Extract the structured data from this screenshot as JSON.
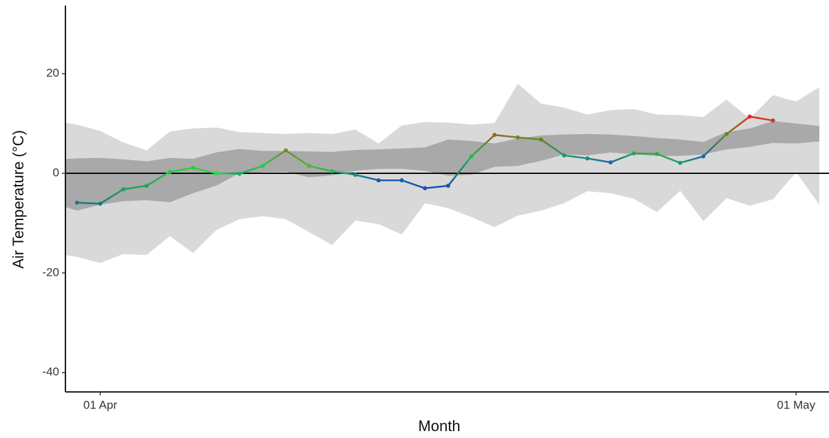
{
  "chart_data": {
    "type": "line",
    "x_label": "Month",
    "y_label": "Air Temperature (°C)",
    "xlim": [
      "03-30T12",
      "05-02T10"
    ],
    "xticks": [
      {
        "value": "04-01",
        "label": "01 Apr"
      },
      {
        "value": "05-01",
        "label": "01 May"
      }
    ],
    "ylim": [
      -43.9,
      33.7
    ],
    "yticks": [
      -40,
      -20,
      0,
      20
    ],
    "hline": 0,
    "x": [
      "03-31",
      "04-01",
      "04-02",
      "04-03",
      "04-04",
      "04-05",
      "04-06",
      "04-07",
      "04-08",
      "04-09",
      "04-10",
      "04-11",
      "04-12",
      "04-13",
      "04-14",
      "04-15",
      "04-16",
      "04-17",
      "04-18",
      "04-19",
      "04-20",
      "04-21",
      "04-22",
      "04-23",
      "04-24",
      "04-25",
      "04-26",
      "04-27",
      "04-28",
      "04-29",
      "04-30"
    ],
    "values": [
      -5.9,
      -6.1,
      -3.2,
      -2.5,
      0.3,
      1.1,
      0,
      -0.1,
      1.5,
      4.6,
      1.5,
      0.4,
      -0.3,
      -1.4,
      -1.4,
      -3.0,
      -2.5,
      3.4,
      7.7,
      7.2,
      6.8,
      3.6,
      3.0,
      2.2,
      4.0,
      3.9,
      2.1,
      3.4,
      7.9,
      11.4,
      10.6
    ],
    "colors": [
      "#1a7a8a",
      "#1a7a7a",
      "#22a060",
      "#22a060",
      "#22cc44",
      "#33cc33",
      "#22dd44",
      "#1aaa70",
      "#22cc44",
      "#7a8a22",
      "#44bb33",
      "#22bb55",
      "#1a8a8a",
      "#1a5aaa",
      "#1a60b0",
      "#1a50b0",
      "#1a50b0",
      "#22bb44",
      "#8a6a22",
      "#6a8a22",
      "#5a8a22",
      "#1a9a7a",
      "#1a8a8a",
      "#1a6aaa",
      "#22aa55",
      "#33aa44",
      "#1a9a7a",
      "#1a6aaa",
      "#6a8a22",
      "#ee2222",
      "#bb4422"
    ],
    "bands": [
      {
        "color": "#d9d9d9",
        "x": [
          "03-30",
          "03-31",
          "04-01",
          "04-02",
          "04-03",
          "04-04",
          "04-05",
          "04-06",
          "04-07",
          "04-08",
          "04-09",
          "04-10",
          "04-11",
          "04-12",
          "04-13",
          "04-14",
          "04-15",
          "04-16",
          "04-17",
          "04-18",
          "04-19",
          "04-20",
          "04-21",
          "04-22",
          "04-23",
          "04-24",
          "04-25",
          "04-26",
          "04-27",
          "04-28",
          "04-29",
          "04-30",
          "05-01",
          "05-02"
        ],
        "upper": [
          10.5,
          9.8,
          8.5,
          6.2,
          4.6,
          8.4,
          9.0,
          9.2,
          8.3,
          8.1,
          7.9,
          8.1,
          7.9,
          8.8,
          6.0,
          9.6,
          10.3,
          10.2,
          9.8,
          10.1,
          18.0,
          14.0,
          13.2,
          11.8,
          12.7,
          12.9,
          11.8,
          11.7,
          11.3,
          14.8,
          11.0,
          15.7,
          14.4,
          17.3
        ],
        "lower": [
          -16,
          -16.8,
          -18,
          -16.2,
          -16.4,
          -12.6,
          -16,
          -11.4,
          -9.2,
          -8.6,
          -9.2,
          -11.8,
          -14.4,
          -9.5,
          -10.2,
          -12.3,
          -6.0,
          -7.0,
          -8.8,
          -10.8,
          -8.5,
          -7.5,
          -6.0,
          -3.6,
          -4.0,
          -5.1,
          -7.8,
          -3.5,
          -9.6,
          -5.0,
          -6.5,
          -5.2,
          0.2,
          -6.3
        ]
      },
      {
        "color": "#a9a9a9",
        "x": [
          "03-30",
          "03-31",
          "04-01",
          "04-02",
          "04-03",
          "04-04",
          "04-05",
          "04-06",
          "04-07",
          "04-08",
          "04-09",
          "04-10",
          "04-11",
          "04-12",
          "04-13",
          "04-14",
          "04-15",
          "04-16",
          "04-17",
          "04-18",
          "04-19",
          "04-20",
          "04-21",
          "04-22",
          "04-23",
          "04-24",
          "04-25",
          "04-26",
          "04-27",
          "04-28",
          "04-29",
          "04-30",
          "05-01",
          "05-02"
        ],
        "upper": [
          2.7,
          3.0,
          3.1,
          2.8,
          2.4,
          3.1,
          2.9,
          4.2,
          4.9,
          4.5,
          4.5,
          4.4,
          4.3,
          4.7,
          4.8,
          5.0,
          5.2,
          6.8,
          6.5,
          6.0,
          7.0,
          7.6,
          7.8,
          7.9,
          7.8,
          7.5,
          7.1,
          6.8,
          6.3,
          8.3,
          9.0,
          10.5,
          10.0,
          9.5
        ],
        "lower": [
          -6.0,
          -7.5,
          -6.3,
          -5.6,
          -5.4,
          -5.8,
          -4.0,
          -2.5,
          0.0,
          0.2,
          0.3,
          -0.8,
          -0.4,
          0.5,
          0.9,
          0.9,
          0.5,
          -0.5,
          -0.3,
          1.3,
          1.5,
          2.5,
          3.8,
          3.6,
          4.2,
          3.8,
          3.5,
          3.5,
          3.8,
          4.8,
          5.3,
          6.1,
          6.0,
          6.4
        ]
      }
    ]
  }
}
